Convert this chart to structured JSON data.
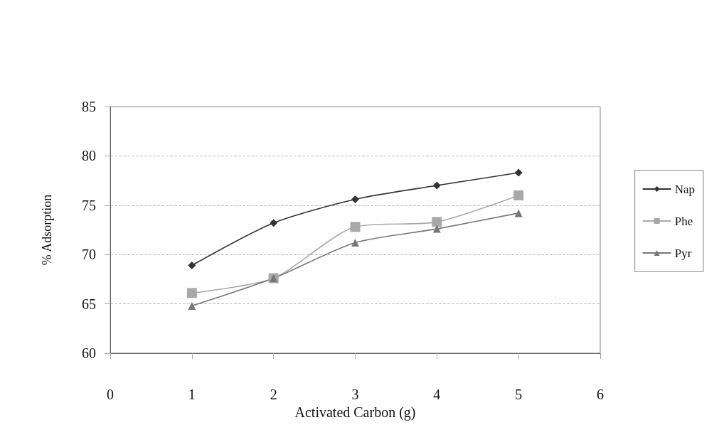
{
  "chart_data": {
    "type": "line",
    "xlabel": "Activated Carbon (g)",
    "ylabel": "% Adsorption",
    "x": [
      1,
      2,
      3,
      4,
      5
    ],
    "series": [
      {
        "name": "Nap",
        "color": "#333333",
        "marker": "diamond",
        "values": [
          68.9,
          73.2,
          75.6,
          77.0,
          78.3
        ]
      },
      {
        "name": "Phe",
        "color": "#a8a8a8",
        "marker": "square",
        "values": [
          66.1,
          67.6,
          72.8,
          73.3,
          76.0
        ]
      },
      {
        "name": "Pyr",
        "color": "#777777",
        "marker": "triangle",
        "values": [
          64.8,
          67.6,
          71.2,
          72.6,
          74.2
        ]
      }
    ],
    "xlim": [
      0,
      6
    ],
    "xticks": [
      0,
      1,
      2,
      3,
      4,
      5,
      6
    ],
    "ylim": [
      60,
      85
    ],
    "yticks": [
      60,
      65,
      70,
      75,
      80,
      85
    ],
    "grid": "y",
    "legend": "right"
  }
}
